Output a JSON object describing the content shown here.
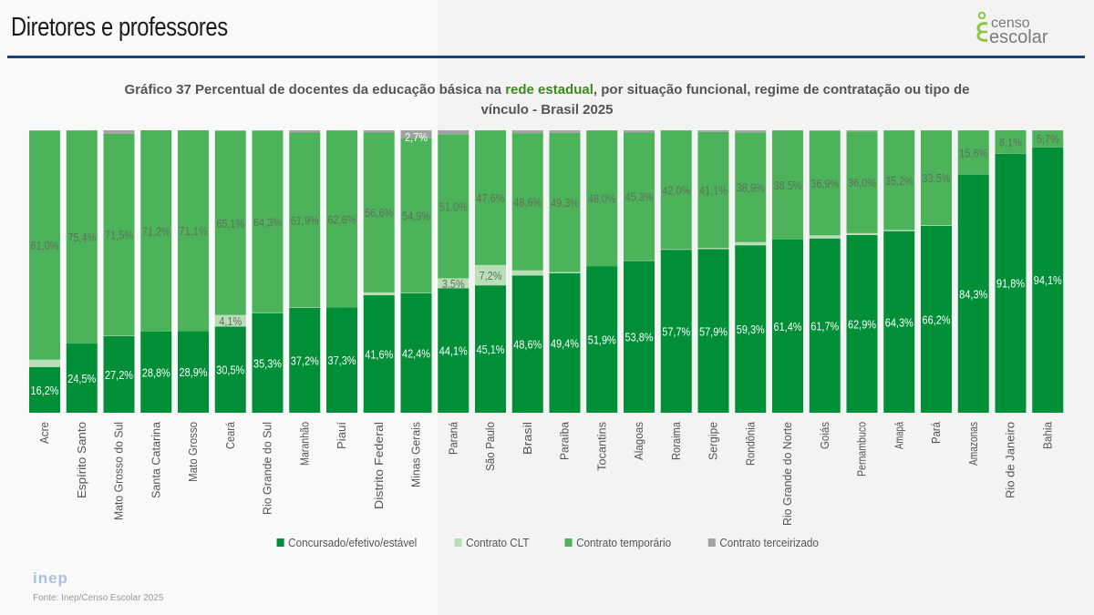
{
  "header": {
    "title": "Diretores e professores",
    "logo": {
      "line1": "censo",
      "line2": "escolar",
      "icon": "censo-escolar-logo-icon"
    }
  },
  "colors": {
    "concursado": "#008f36",
    "clt": "#b9dfb6",
    "temporario": "#4db35a",
    "terceirizado": "#a3a3a3",
    "rule": "#1d3f7a",
    "highlight": "#3c8a1e"
  },
  "footer": {
    "logo_text": "inep",
    "source": "Fonte: Inep/Censo Escolar 2025"
  },
  "chart_data": {
    "type": "bar",
    "stacked": true,
    "title_prefix": "Gráfico 37 Percentual de docentes da educação básica na ",
    "title_highlight": "rede estadual",
    "title_suffix": ", por situação funcional, regime de contratação ou tipo de vínculo - Brasil 2025",
    "xlabel": "",
    "ylabel": "",
    "ylim": [
      0,
      100
    ],
    "grid": false,
    "legend_position": "bottom",
    "categories": [
      "Acre",
      "Espírito Santo",
      "Mato Grosso do Sul",
      "Santa Catarina",
      "Mato Grosso",
      "Ceará",
      "Rio Grande do Sul",
      "Maranhão",
      "Piauí",
      "Distrito Federal",
      "Minas Gerais",
      "Paraná",
      "São Paulo",
      "Brasil",
      "Paraíba",
      "Tocantins",
      "Alagoas",
      "Roraima",
      "Sergipe",
      "Rondônia",
      "Rio Grande do Norte",
      "Goiás",
      "Pernambuco",
      "Amapá",
      "Pará",
      "Amazonas",
      "Rio de Janeiro",
      "Bahia"
    ],
    "series": [
      {
        "name": "Concursado/efetivo/estável",
        "color_key": "concursado",
        "values": [
          16.2,
          24.5,
          27.2,
          28.8,
          28.9,
          30.5,
          35.3,
          37.2,
          37.3,
          41.6,
          42.4,
          44.1,
          45.1,
          48.6,
          49.4,
          51.9,
          53.8,
          57.7,
          57.9,
          59.3,
          61.4,
          61.7,
          62.9,
          64.3,
          66.2,
          84.3,
          91.8,
          94.1
        ],
        "labels": [
          "16,2%",
          "24,5%",
          "27,2%",
          "28,8%",
          "28,9%",
          "30,5%",
          "35,3%",
          "37,2%",
          "37,3%",
          "41,6%",
          "42,4%",
          "44,1%",
          "45,1%",
          "48,6%",
          "49,4%",
          "51,9%",
          "53,8%",
          "57,7%",
          "57,9%",
          "59,3%",
          "61,4%",
          "61,7%",
          "62,9%",
          "64,3%",
          "66,2%",
          "84,3%",
          "91,8%",
          "94,1%"
        ]
      },
      {
        "name": "Contrato CLT",
        "color_key": "clt",
        "values": [
          2.6,
          0.0,
          0.1,
          0.0,
          0.0,
          4.1,
          0.2,
          0.1,
          0.0,
          1.0,
          0.1,
          3.5,
          7.2,
          1.8,
          0.4,
          0.0,
          0.1,
          0.2,
          0.4,
          1.1,
          0.0,
          1.1,
          0.7,
          0.4,
          0.2,
          0.0,
          0.1,
          0.1
        ],
        "labels": [
          "",
          "",
          "",
          "",
          "",
          "4,1%",
          "",
          "",
          "",
          "",
          "",
          "3,5%",
          "7,2%",
          "",
          "",
          "",
          "",
          "",
          "",
          "",
          "",
          "",
          "",
          "",
          "",
          "",
          "",
          ""
        ]
      },
      {
        "name": "Contrato temporário",
        "color_key": "temporario",
        "values": [
          81.0,
          75.4,
          71.5,
          71.2,
          71.1,
          65.1,
          64.3,
          61.9,
          62.6,
          56.6,
          54.9,
          51.0,
          47.6,
          48.6,
          49.3,
          48.0,
          45.3,
          42.0,
          41.1,
          38.9,
          38.5,
          36.9,
          36.0,
          35.2,
          33.5,
          15.6,
          8.1,
          5.7
        ],
        "labels": [
          "81,0%",
          "75,4%",
          "71,5%",
          "71,2%",
          "71,1%",
          "65,1%",
          "64,3%",
          "61,9%",
          "62,6%",
          "56,6%",
          "54,9%",
          "51,0%",
          "47,6%",
          "48,6%",
          "49,3%",
          "48,0%",
          "45,3%",
          "42,0%",
          "41,1%",
          "38,9%",
          "38,5%",
          "36,9%",
          "36,0%",
          "35,2%",
          "33,5%",
          "15,6%",
          "8,1%",
          "5,7%"
        ]
      },
      {
        "name": "Contrato terceirizado",
        "color_key": "terceirizado",
        "values": [
          0.2,
          0.1,
          1.2,
          0.0,
          0.0,
          0.3,
          0.2,
          0.8,
          0.1,
          0.8,
          2.7,
          1.4,
          0.1,
          1.0,
          0.9,
          0.1,
          0.8,
          0.1,
          0.6,
          0.7,
          0.1,
          0.3,
          0.4,
          0.1,
          0.1,
          0.1,
          0.0,
          0.1
        ],
        "labels": [
          "",
          "",
          "",
          "",
          "",
          "",
          "",
          "",
          "",
          "",
          "2,7%",
          "",
          "",
          "",
          "",
          "",
          "",
          "",
          "",
          "",
          "",
          "",
          "",
          "",
          "",
          "",
          "",
          ""
        ]
      }
    ]
  }
}
